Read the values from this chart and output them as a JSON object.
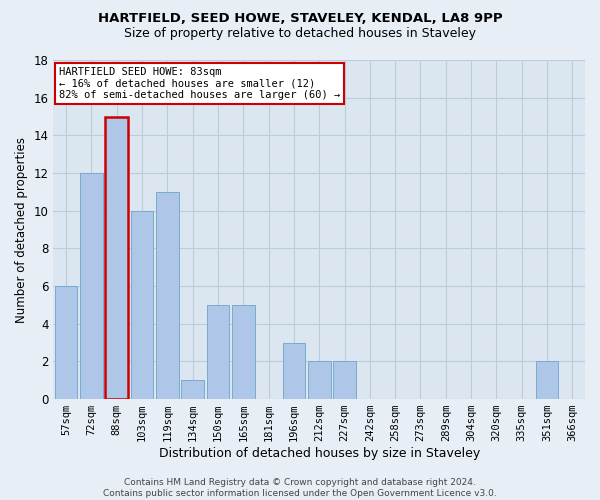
{
  "title1": "HARTFIELD, SEED HOWE, STAVELEY, KENDAL, LA8 9PP",
  "title2": "Size of property relative to detached houses in Staveley",
  "xlabel": "Distribution of detached houses by size in Staveley",
  "ylabel": "Number of detached properties",
  "footnote": "Contains HM Land Registry data © Crown copyright and database right 2024.\nContains public sector information licensed under the Open Government Licence v3.0.",
  "bin_labels": [
    "57sqm",
    "72sqm",
    "88sqm",
    "103sqm",
    "119sqm",
    "134sqm",
    "150sqm",
    "165sqm",
    "181sqm",
    "196sqm",
    "212sqm",
    "227sqm",
    "242sqm",
    "258sqm",
    "273sqm",
    "289sqm",
    "304sqm",
    "320sqm",
    "335sqm",
    "351sqm",
    "366sqm"
  ],
  "values": [
    6,
    12,
    15,
    10,
    11,
    1,
    5,
    5,
    0,
    3,
    2,
    2,
    0,
    0,
    0,
    0,
    0,
    0,
    0,
    2,
    0
  ],
  "highlight_index": 2,
  "bar_color": "#aec6e8",
  "bar_edge_color": "#7aaad0",
  "highlight_bar_edge_color": "#cc0000",
  "annotation_line1": "HARTFIELD SEED HOWE: 83sqm",
  "annotation_line2": "← 16% of detached houses are smaller (12)",
  "annotation_line3": "82% of semi-detached houses are larger (60) →",
  "annotation_box_color": "#ffffff",
  "annotation_box_edge_color": "#cc0000",
  "ylim": [
    0,
    18
  ],
  "yticks": [
    0,
    2,
    4,
    6,
    8,
    10,
    12,
    14,
    16,
    18
  ],
  "grid_color": "#bbccdd",
  "background_color": "#e8eef5",
  "plot_bg_color": "#dce6f0",
  "title1_fontsize": 9.5,
  "title2_fontsize": 9,
  "xlabel_fontsize": 9,
  "ylabel_fontsize": 8.5,
  "tick_fontsize": 7.5,
  "ytick_fontsize": 8.5,
  "footnote_fontsize": 6.5
}
